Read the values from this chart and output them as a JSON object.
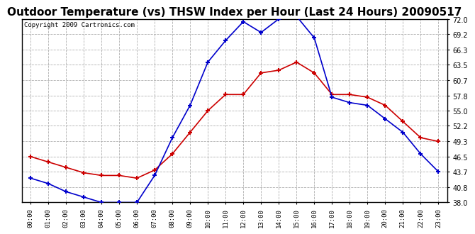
{
  "title": "Outdoor Temperature (vs) THSW Index per Hour (Last 24 Hours) 20090517",
  "copyright": "Copyright 2009 Cartronics.com",
  "hours": [
    "00:00",
    "01:00",
    "02:00",
    "03:00",
    "04:00",
    "05:00",
    "06:00",
    "07:00",
    "08:00",
    "09:00",
    "10:00",
    "11:00",
    "12:00",
    "13:00",
    "14:00",
    "15:00",
    "16:00",
    "17:00",
    "18:00",
    "19:00",
    "20:00",
    "21:00",
    "22:00",
    "23:00"
  ],
  "temp": [
    46.5,
    45.5,
    44.5,
    43.5,
    43.0,
    43.0,
    42.5,
    44.0,
    47.0,
    51.0,
    55.0,
    58.0,
    58.0,
    62.0,
    62.5,
    64.0,
    62.0,
    58.0,
    58.0,
    57.5,
    56.0,
    53.0,
    50.0,
    49.3
  ],
  "thsw": [
    42.5,
    41.5,
    40.0,
    39.0,
    38.0,
    38.0,
    38.0,
    43.0,
    50.0,
    56.0,
    64.0,
    68.0,
    71.5,
    69.5,
    72.0,
    72.5,
    68.5,
    57.5,
    56.5,
    56.0,
    53.5,
    51.0,
    47.0,
    43.7
  ],
  "temp_color": "#cc0000",
  "thsw_color": "#0000cc",
  "ylim_min": 38.0,
  "ylim_max": 72.0,
  "yticks": [
    38.0,
    40.8,
    43.7,
    46.5,
    49.3,
    52.2,
    55.0,
    57.8,
    60.7,
    63.5,
    66.3,
    69.2,
    72.0
  ],
  "background_color": "#ffffff",
  "plot_bg_color": "#ffffff",
  "grid_color": "#b0b0b0",
  "title_fontsize": 11,
  "copyright_fontsize": 6.5
}
